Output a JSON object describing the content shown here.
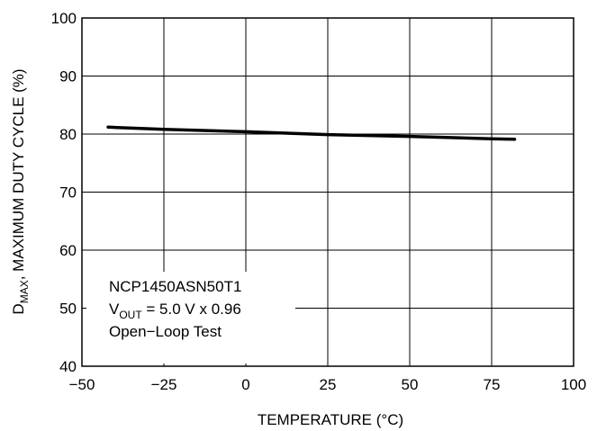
{
  "chart_data": {
    "type": "line",
    "title": "",
    "xlabel": "TEMPERATURE (°C)",
    "ylabel": {
      "main": "D",
      "sub": "MAX",
      "rest": ", MAXIMUM DUTY CYCLE (%)"
    },
    "xlim": [
      -50,
      100
    ],
    "ylim": [
      40,
      100
    ],
    "xticks": [
      -50,
      -25,
      0,
      25,
      50,
      75,
      100
    ],
    "yticks": [
      40,
      50,
      60,
      70,
      80,
      90,
      100
    ],
    "xtick_labels": [
      "−50",
      "−25",
      "0",
      "25",
      "50",
      "75",
      "100"
    ],
    "ytick_labels": [
      "40",
      "50",
      "60",
      "70",
      "80",
      "90",
      "100"
    ],
    "grid": true,
    "series": [
      {
        "x": [
          -42,
          -25,
          0,
          25,
          50,
          75,
          82
        ],
        "y": [
          81.2,
          80.8,
          80.4,
          79.9,
          79.6,
          79.2,
          79.1
        ]
      }
    ],
    "annotation": {
      "line1": "NCP1450ASN50T1",
      "line2_main": "V",
      "line2_sub": "OUT",
      "line2_rest": " = 5.0 V x 0.96",
      "line3": "Open−Loop Test"
    }
  }
}
